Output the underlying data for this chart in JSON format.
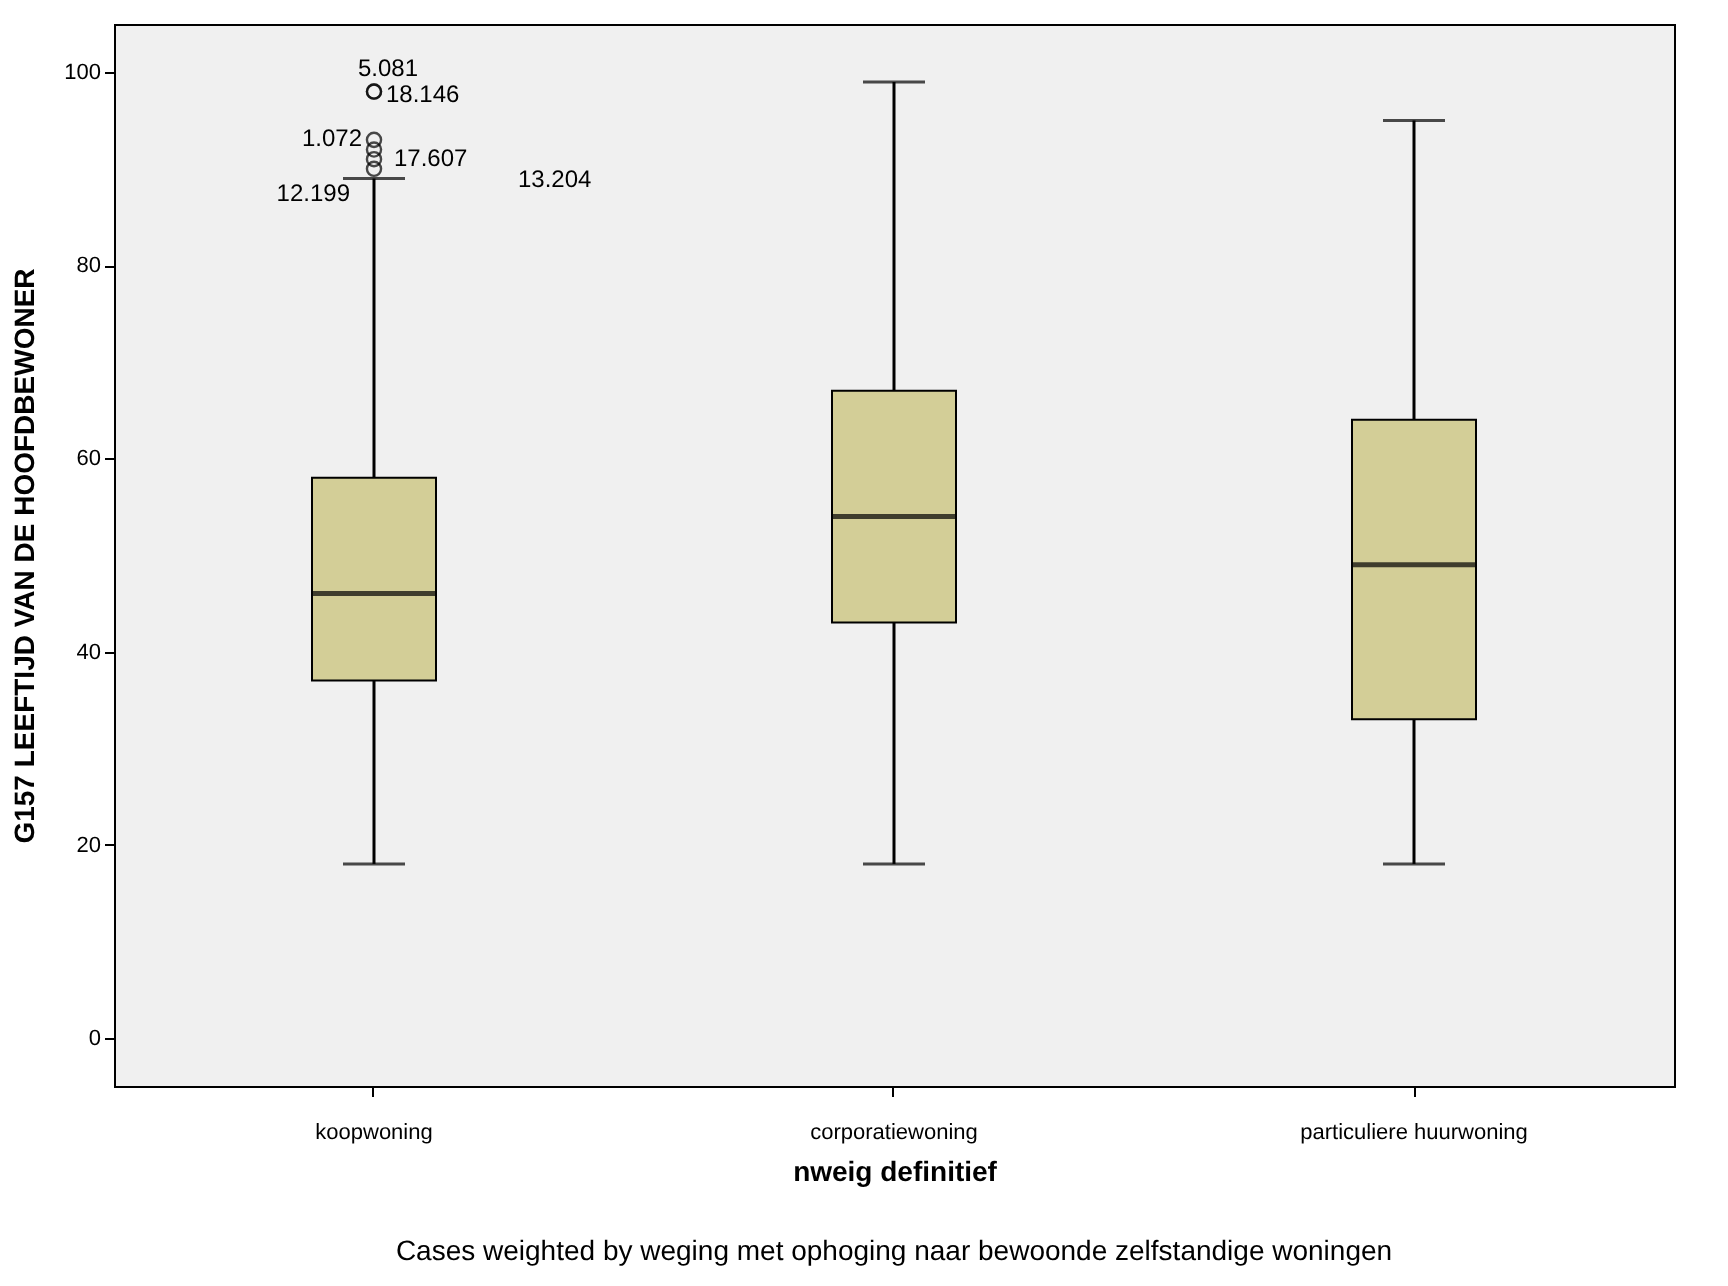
{
  "chart_data": {
    "type": "box",
    "xlabel": "nweig definitief",
    "ylabel": "G157 LEEFTIJD VAN DE HOOFDBEWONER",
    "categories": [
      "koopwoning",
      "corporatiewoning",
      "particuliere huurwoning"
    ],
    "series": [
      {
        "color": "#d3ce97",
        "boxes": [
          {
            "low": 18,
            "q1": 37,
            "median": 46,
            "q3": 58,
            "high": 89,
            "outliers": [
              98,
              98,
              93,
              92,
              91,
              90
            ]
          },
          {
            "low": 18,
            "q1": 43,
            "median": 54,
            "q3": 67,
            "high": 99
          },
          {
            "low": 18,
            "q1": 33,
            "median": 49,
            "q3": 64,
            "high": 95
          }
        ]
      }
    ],
    "ylim": [
      -5,
      105
    ],
    "yticks": [
      0,
      20,
      40,
      60,
      80,
      100
    ],
    "grid": false,
    "marker": "circle",
    "annotations": [
      "5.081",
      "18.146",
      "1.072",
      "17.607",
      "13.204",
      "12.199",
      "Cases weighted by weging met ophoging naar bewoonde zelfstandige woningen"
    ]
  }
}
